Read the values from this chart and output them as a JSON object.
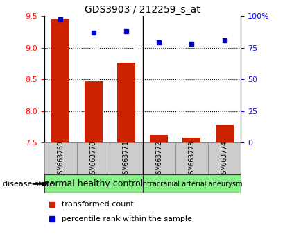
{
  "title": "GDS3903 / 212259_s_at",
  "samples": [
    "GSM663769",
    "GSM663770",
    "GSM663771",
    "GSM663772",
    "GSM663773",
    "GSM663774"
  ],
  "transformed_count": [
    9.45,
    8.47,
    8.76,
    7.62,
    7.58,
    7.78
  ],
  "percentile_rank": [
    97,
    87,
    88,
    79,
    78,
    81
  ],
  "ylim_left": [
    7.5,
    9.5
  ],
  "ylim_right": [
    0,
    100
  ],
  "yticks_left": [
    7.5,
    8.0,
    8.5,
    9.0,
    9.5
  ],
  "yticks_right": [
    0,
    25,
    50,
    75,
    100
  ],
  "ytick_labels_right": [
    "0",
    "25",
    "50",
    "75",
    "100%"
  ],
  "bar_color": "#cc2200",
  "dot_color": "#0000cc",
  "grid_color": "#000000",
  "background_color": "#ffffff",
  "sample_box_color": "#cccccc",
  "group1_color": "#88ee88",
  "group2_color": "#88ee88",
  "group1_label": "normal healthy control",
  "group2_label": "intracranial arterial aneurysm",
  "group1_samples": [
    0,
    1,
    2
  ],
  "group2_samples": [
    3,
    4,
    5
  ],
  "legend_bar_label": "transformed count",
  "legend_dot_label": "percentile rank within the sample",
  "disease_state_label": "disease state",
  "bar_width": 0.55,
  "title_fontsize": 10,
  "tick_fontsize": 8,
  "sample_fontsize": 7,
  "group_fontsize1": 9,
  "group_fontsize2": 7,
  "legend_fontsize": 8
}
